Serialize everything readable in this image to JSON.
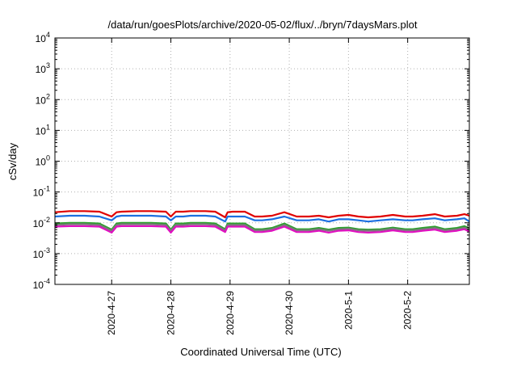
{
  "chart_data": {
    "type": "line",
    "title": "/data/run/goesPlots/archive/2020-05-02/flux/../bryn/7daysMars.plot",
    "xlabel": "Coordinated Universal Time (UTC)",
    "ylabel": "cSv/day",
    "yscale": "log",
    "ylim": [
      0.0001,
      10000
    ],
    "y_ticks": [
      {
        "base": "10",
        "exp": "-4"
      },
      {
        "base": "10",
        "exp": "-3"
      },
      {
        "base": "10",
        "exp": "-2"
      },
      {
        "base": "10",
        "exp": "-1"
      },
      {
        "base": "10",
        "exp": "0"
      },
      {
        "base": "10",
        "exp": "1"
      },
      {
        "base": "10",
        "exp": "2"
      },
      {
        "base": "10",
        "exp": "3"
      },
      {
        "base": "10",
        "exp": "4"
      }
    ],
    "xlim": [
      "2020-04-26 01:00",
      "2020-05-03 01:00"
    ],
    "x_ticks": [
      "2020-4-27",
      "2020-4-28",
      "2020-4-29",
      "2020-4-30",
      "2020-5-1",
      "2020-5-2"
    ],
    "grid": true,
    "x": [
      "2020-04-26 01:00",
      "2020-04-26 07:00",
      "2020-04-26 13:00",
      "2020-04-26 19:00",
      "2020-04-27 00:00",
      "2020-04-27 02:00",
      "2020-04-27 04:00",
      "2020-04-27 10:00",
      "2020-04-27 16:00",
      "2020-04-27 22:00",
      "2020-04-28 00:00",
      "2020-04-28 02:00",
      "2020-04-28 05:00",
      "2020-04-28 08:00",
      "2020-04-28 11:00",
      "2020-04-28 14:00",
      "2020-04-28 18:00",
      "2020-04-28 22:00",
      "2020-04-28 23:00",
      "2020-04-29 01:00",
      "2020-04-29 06:00",
      "2020-04-29 10:00",
      "2020-04-29 13:00",
      "2020-04-29 17:00",
      "2020-04-29 22:00",
      "2020-04-30 03:00",
      "2020-04-30 08:00",
      "2020-04-30 12:00",
      "2020-04-30 16:00",
      "2020-04-30 20:00",
      "2020-05-01 00:00",
      "2020-05-01 04:00",
      "2020-05-01 08:00",
      "2020-05-01 13:00",
      "2020-05-01 18:00",
      "2020-05-01 23:00",
      "2020-05-02 02:00",
      "2020-05-02 06:00",
      "2020-05-02 11:00",
      "2020-05-02 15:00",
      "2020-05-02 20:00",
      "2020-05-02 23:00",
      "2020-05-03 01:00"
    ],
    "series": [
      {
        "color": "#e00000",
        "values": [
          0.022,
          0.024,
          0.024,
          0.023,
          0.016,
          0.022,
          0.023,
          0.024,
          0.024,
          0.023,
          0.016,
          0.023,
          0.023,
          0.024,
          0.024,
          0.024,
          0.023,
          0.015,
          0.022,
          0.023,
          0.023,
          0.016,
          0.016,
          0.017,
          0.022,
          0.016,
          0.016,
          0.017,
          0.015,
          0.017,
          0.018,
          0.016,
          0.015,
          0.016,
          0.018,
          0.016,
          0.016,
          0.017,
          0.019,
          0.016,
          0.017,
          0.019,
          0.017
        ]
      },
      {
        "color": "#1c6fe0",
        "values": [
          0.016,
          0.017,
          0.017,
          0.016,
          0.012,
          0.016,
          0.017,
          0.017,
          0.017,
          0.016,
          0.012,
          0.016,
          0.016,
          0.017,
          0.017,
          0.017,
          0.016,
          0.011,
          0.016,
          0.016,
          0.016,
          0.012,
          0.012,
          0.013,
          0.016,
          0.012,
          0.012,
          0.013,
          0.011,
          0.013,
          0.013,
          0.012,
          0.011,
          0.012,
          0.013,
          0.012,
          0.012,
          0.013,
          0.014,
          0.012,
          0.013,
          0.014,
          0.011
        ]
      },
      {
        "color": "#2aa02a",
        "values": [
          0.0095,
          0.01,
          0.01,
          0.0095,
          0.006,
          0.0095,
          0.01,
          0.01,
          0.01,
          0.0095,
          0.006,
          0.0095,
          0.0095,
          0.01,
          0.01,
          0.01,
          0.0095,
          0.0062,
          0.0095,
          0.0095,
          0.0095,
          0.0062,
          0.0062,
          0.0068,
          0.0095,
          0.0062,
          0.0062,
          0.0068,
          0.006,
          0.0068,
          0.007,
          0.0062,
          0.006,
          0.0062,
          0.007,
          0.0062,
          0.0062,
          0.0068,
          0.0075,
          0.0062,
          0.0068,
          0.0078,
          0.0065
        ]
      },
      {
        "color": "#7a7a7a",
        "values": [
          0.0085,
          0.009,
          0.009,
          0.0085,
          0.0055,
          0.0085,
          0.009,
          0.009,
          0.009,
          0.0085,
          0.0055,
          0.0085,
          0.0085,
          0.009,
          0.009,
          0.009,
          0.0085,
          0.0057,
          0.0085,
          0.0085,
          0.0085,
          0.0057,
          0.0057,
          0.0062,
          0.0085,
          0.0057,
          0.0057,
          0.0062,
          0.0055,
          0.0062,
          0.0064,
          0.0057,
          0.0055,
          0.0057,
          0.0064,
          0.0057,
          0.0057,
          0.0062,
          0.0068,
          0.0057,
          0.0062,
          0.007,
          0.006
        ]
      },
      {
        "color": "#e010c0",
        "values": [
          0.0075,
          0.0078,
          0.0078,
          0.0075,
          0.0048,
          0.0075,
          0.0078,
          0.0078,
          0.0078,
          0.0075,
          0.0048,
          0.0075,
          0.0075,
          0.0078,
          0.0078,
          0.0078,
          0.0075,
          0.005,
          0.0075,
          0.0075,
          0.0075,
          0.005,
          0.005,
          0.0055,
          0.0075,
          0.005,
          0.005,
          0.0055,
          0.0048,
          0.0055,
          0.0057,
          0.005,
          0.0048,
          0.005,
          0.0057,
          0.005,
          0.005,
          0.0055,
          0.006,
          0.005,
          0.0055,
          0.0062,
          0.0052
        ]
      }
    ]
  }
}
